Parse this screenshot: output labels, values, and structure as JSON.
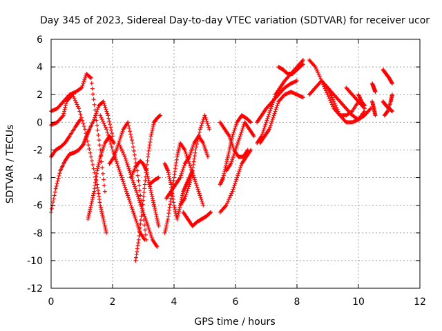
{
  "chart_data": {
    "type": "scatter",
    "title": "Day 345 of 2023, Sidereal Day-to-day VTEC variation (SDTVAR) for receiver ucor",
    "xlabel": "GPS time / hours",
    "ylabel": "SDTVAR / TECUs",
    "xlim": [
      0,
      12
    ],
    "ylim": [
      -12,
      6
    ],
    "x_ticks": [
      0,
      2,
      4,
      6,
      8,
      10,
      12
    ],
    "y_ticks": [
      -12,
      -10,
      -8,
      -6,
      -4,
      -2,
      0,
      2,
      4,
      6
    ],
    "x_tick_labels": [
      "0",
      "2",
      "4",
      "6",
      "8",
      "10",
      "12"
    ],
    "y_tick_labels": [
      "-12",
      "-10",
      "-8",
      "-6",
      "-4",
      "-2",
      "0",
      "2",
      "4",
      "6"
    ],
    "grid": true,
    "marker": "+",
    "color": "#ff0000",
    "series": [
      {
        "x": [
          0.0,
          0.2,
          0.4,
          0.6,
          0.8,
          1.0,
          1.15,
          1.3,
          1.45,
          1.6,
          1.75
        ],
        "y": [
          0.8,
          1.0,
          1.5,
          2.0,
          2.2,
          2.5,
          3.5,
          3.2,
          0.5,
          -2.0,
          -5.0
        ]
      },
      {
        "x": [
          0.0,
          0.2,
          0.4,
          0.5,
          0.7,
          0.9,
          1.1,
          1.3,
          1.5,
          1.6,
          1.7,
          1.8
        ],
        "y": [
          -0.2,
          0.0,
          0.5,
          1.5,
          2.0,
          1.0,
          -0.5,
          -2.5,
          -4.5,
          -6.0,
          -7.0,
          -8.0
        ]
      },
      {
        "x": [
          0.0,
          0.15,
          0.3,
          0.45,
          0.6,
          0.8,
          0.95
        ],
        "y": [
          -2.5,
          -2.0,
          -1.8,
          -1.5,
          -1.0,
          -0.3,
          0.2
        ]
      },
      {
        "x": [
          0.0,
          0.15,
          0.3,
          0.45,
          0.6,
          0.75,
          0.9,
          1.05
        ],
        "y": [
          -6.5,
          -4.8,
          -3.5,
          -2.8,
          -2.3,
          -2.2,
          -2.0,
          -1.6
        ]
      },
      {
        "x": [
          1.05,
          1.15,
          1.25,
          1.4,
          1.55,
          1.7,
          1.85,
          2.0
        ],
        "y": [
          -1.6,
          -1.0,
          -0.5,
          0.2,
          1.2,
          1.5,
          0.5,
          -1.0
        ]
      },
      {
        "x": [
          1.2,
          1.3,
          1.4,
          1.5,
          1.6,
          1.75,
          1.9,
          2.05
        ],
        "y": [
          -7.0,
          -6.0,
          -5.0,
          -3.5,
          -2.5,
          -1.5,
          -1.0,
          -1.5
        ]
      },
      {
        "x": [
          1.6,
          1.8,
          2.0,
          2.15,
          2.3,
          2.45,
          2.6,
          2.75,
          2.9,
          3.05
        ],
        "y": [
          0.5,
          -0.5,
          -2.0,
          -3.0,
          -4.0,
          -5.0,
          -6.0,
          -7.0,
          -8.0,
          -8.5
        ]
      },
      {
        "x": [
          1.9,
          2.05,
          2.2,
          2.35,
          2.5,
          2.65,
          2.8,
          2.95,
          3.1
        ],
        "y": [
          -3.0,
          -2.5,
          -1.5,
          -0.5,
          0.0,
          -1.5,
          -3.5,
          -6.0,
          -8.5
        ]
      },
      {
        "x": [
          2.2,
          2.4,
          2.55,
          2.7,
          2.85,
          3.0,
          3.15,
          3.3,
          3.45
        ],
        "y": [
          -1.5,
          -2.5,
          -3.5,
          -4.5,
          -5.5,
          -6.5,
          -7.5,
          -8.5,
          -9.0
        ]
      },
      {
        "x": [
          2.6,
          2.75,
          2.9,
          3.0,
          3.1,
          3.2,
          3.3,
          3.4,
          3.5
        ],
        "y": [
          -4.0,
          -3.2,
          -2.8,
          -3.0,
          -3.5,
          -4.5,
          -5.5,
          -6.5,
          -7.5
        ]
      },
      {
        "x": [
          2.75,
          2.85,
          2.95,
          3.05,
          3.15,
          3.25,
          3.35,
          3.45,
          3.55
        ],
        "y": [
          -10.0,
          -8.5,
          -6.5,
          -4.5,
          -2.5,
          -1.0,
          0.0,
          0.3,
          0.5
        ]
      },
      {
        "x": [
          3.2,
          3.35,
          3.5
        ],
        "y": [
          -4.5,
          -4.2,
          -4.0
        ]
      },
      {
        "x": [
          3.7,
          3.8,
          3.9,
          4.0,
          4.1,
          4.2,
          4.3,
          4.4,
          4.5,
          4.6
        ],
        "y": [
          -3.0,
          -3.5,
          -4.5,
          -6.0,
          -7.0,
          -6.0,
          -5.0,
          -4.5,
          -4.0,
          -3.5
        ]
      },
      {
        "x": [
          3.7,
          3.8,
          3.9,
          4.0,
          4.1,
          4.2,
          4.35,
          4.5,
          4.65,
          4.8,
          4.95
        ],
        "y": [
          -8.0,
          -7.0,
          -5.5,
          -4.0,
          -2.5,
          -1.5,
          -2.0,
          -3.0,
          -4.0,
          -5.0,
          -6.0
        ]
      },
      {
        "x": [
          3.75,
          3.9,
          4.05,
          4.2,
          4.35,
          4.5,
          4.65,
          4.8,
          4.95,
          5.1
        ],
        "y": [
          -5.5,
          -5.0,
          -4.5,
          -4.0,
          -3.0,
          -2.5,
          -1.5,
          -1.0,
          -1.5,
          -2.5
        ]
      },
      {
        "x": [
          4.2,
          4.35,
          4.5,
          4.6,
          4.7,
          4.85,
          5.0,
          5.15
        ],
        "y": [
          -6.0,
          -5.5,
          -4.5,
          -3.5,
          -2.0,
          -0.5,
          0.5,
          -0.5
        ]
      },
      {
        "x": [
          4.3,
          4.45,
          4.6,
          4.75,
          4.9,
          5.05,
          5.2
        ],
        "y": [
          -6.5,
          -7.0,
          -7.5,
          -7.2,
          -7.0,
          -6.8,
          -6.5
        ]
      },
      {
        "x": [
          5.5,
          5.6,
          5.7,
          5.8,
          5.9,
          6.05,
          6.2,
          6.35,
          6.5
        ],
        "y": [
          -4.5,
          -4.0,
          -3.0,
          -2.0,
          -1.0,
          0.0,
          0.5,
          0.3,
          0.0
        ]
      },
      {
        "x": [
          5.5,
          5.7,
          5.9,
          6.05,
          6.2,
          6.35,
          6.5
        ],
        "y": [
          -6.5,
          -6.0,
          -5.0,
          -4.0,
          -3.0,
          -2.5,
          -2.0
        ]
      },
      {
        "x": [
          5.5,
          5.65,
          5.8,
          5.95,
          6.1,
          6.25,
          6.4
        ],
        "y": [
          0.0,
          -0.5,
          -1.0,
          -2.0,
          -2.5,
          -2.5,
          -2.0
        ]
      },
      {
        "x": [
          5.7,
          5.85,
          6.0,
          6.15,
          6.3,
          6.45,
          6.6
        ],
        "y": [
          -3.5,
          -3.0,
          -2.0,
          -1.0,
          0.0,
          -0.5,
          -1.0
        ]
      },
      {
        "x": [
          6.7,
          6.85,
          7.0,
          7.15,
          7.3,
          7.45,
          7.6,
          7.8,
          8.0,
          8.2
        ],
        "y": [
          -1.5,
          -1.0,
          0.0,
          1.0,
          2.0,
          2.5,
          3.0,
          3.5,
          4.0,
          4.5
        ]
      },
      {
        "x": [
          6.7,
          6.85,
          7.0,
          7.2,
          7.4,
          7.6,
          7.8,
          8.0
        ],
        "y": [
          0.0,
          0.5,
          1.0,
          1.5,
          2.0,
          2.5,
          2.8,
          3.0
        ]
      },
      {
        "x": [
          6.8,
          6.95,
          7.1,
          7.25,
          7.4,
          7.6,
          7.8,
          8.0,
          8.2
        ],
        "y": [
          -1.5,
          -1.0,
          -0.5,
          0.5,
          1.5,
          2.0,
          2.2,
          2.0,
          1.8
        ]
      },
      {
        "x": [
          7.4,
          7.55,
          7.7,
          7.85,
          8.0,
          8.2
        ],
        "y": [
          4.0,
          3.8,
          3.5,
          3.5,
          3.8,
          4.2
        ]
      },
      {
        "x": [
          8.4,
          8.6,
          8.8,
          9.0,
          9.2,
          9.4,
          9.6,
          9.8,
          10.0,
          10.2,
          10.4
        ],
        "y": [
          4.5,
          4.0,
          3.0,
          2.5,
          2.0,
          1.5,
          1.0,
          0.5,
          0.2,
          0.5,
          1.0
        ]
      },
      {
        "x": [
          8.4,
          8.6,
          8.8,
          9.0,
          9.2,
          9.4,
          9.6,
          9.8,
          10.0
        ],
        "y": [
          2.0,
          2.5,
          3.0,
          2.0,
          1.0,
          0.5,
          0.5,
          0.8,
          1.5
        ]
      },
      {
        "x": [
          8.8,
          9.0,
          9.2,
          9.4,
          9.6,
          9.8,
          10.0,
          10.2
        ],
        "y": [
          3.0,
          2.5,
          1.5,
          0.5,
          0.0,
          0.0,
          0.2,
          0.8
        ]
      },
      {
        "x": [
          9.6,
          9.8,
          10.0,
          10.2
        ],
        "y": [
          2.5,
          2.0,
          1.5,
          1.0
        ]
      },
      {
        "x": [
          10.0,
          10.1,
          10.2
        ],
        "y": [
          2.0,
          1.5,
          1.2
        ]
      },
      {
        "x": [
          10.45,
          10.5,
          10.55
        ],
        "y": [
          2.8,
          2.5,
          2.2
        ]
      },
      {
        "x": [
          10.45,
          10.5,
          10.55
        ],
        "y": [
          1.5,
          1.0,
          0.5
        ]
      },
      {
        "x": [
          10.8,
          10.9,
          11.0,
          11.1
        ],
        "y": [
          3.8,
          3.5,
          3.2,
          2.8
        ]
      },
      {
        "x": [
          10.8,
          10.9,
          11.0,
          11.1
        ],
        "y": [
          1.5,
          1.2,
          1.0,
          0.8
        ]
      },
      {
        "x": [
          10.85,
          10.95,
          11.05,
          11.1
        ],
        "y": [
          0.5,
          0.8,
          1.5,
          2.0
        ]
      }
    ]
  }
}
